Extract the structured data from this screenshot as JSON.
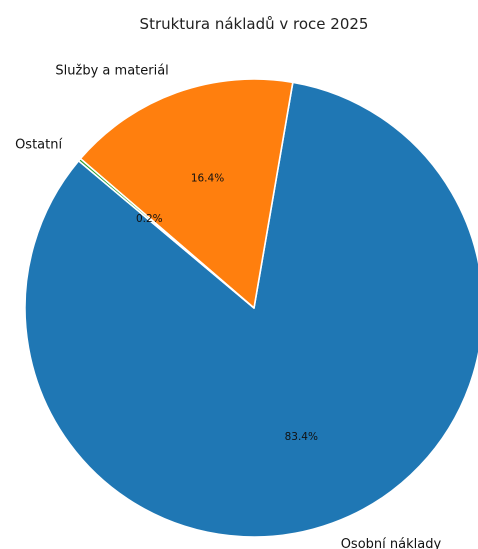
{
  "chart_data": {
    "type": "pie",
    "title": "Struktura nákladů v roce 2025",
    "slices": [
      {
        "label": "Osobní náklady",
        "value": 83.4,
        "pct_label": "83.4%",
        "color": "#1f77b4"
      },
      {
        "label": "Služby a materiál",
        "value": 16.4,
        "pct_label": "16.4%",
        "color": "#ff7f0e"
      },
      {
        "label": "Ostatní",
        "value": 0.2,
        "pct_label": "0.2%",
        "color": "#2ca02c"
      }
    ],
    "start_angle_deg": 140,
    "direction": "counterclockwise",
    "legend": "none"
  }
}
